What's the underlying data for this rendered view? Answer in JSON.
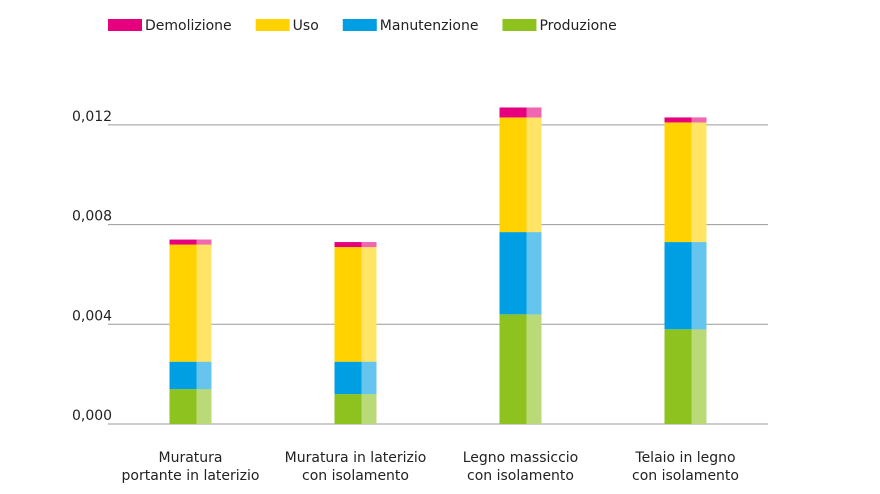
{
  "chart_data": {
    "type": "stacked_bar",
    "categories": [
      [
        "Muratura",
        "portante in laterizio"
      ],
      [
        "Muratura in laterizio",
        "con isolamento"
      ],
      [
        "Legno massiccio",
        "con isolamento"
      ],
      [
        "Telaio in legno",
        "con isolamento"
      ]
    ],
    "series": [
      {
        "name": "Produzione",
        "color": "#8dc21f",
        "values": [
          0.0014,
          0.0012,
          0.0044,
          0.0038
        ]
      },
      {
        "name": "Manutenzione",
        "color": "#009fe3",
        "values": [
          0.0011,
          0.0013,
          0.0033,
          0.0035
        ]
      },
      {
        "name": "Uso",
        "color": "#ffd200",
        "values": [
          0.0047,
          0.0046,
          0.0046,
          0.0048
        ]
      },
      {
        "name": "Demolizione",
        "color": "#e6007e",
        "values": [
          0.0002,
          0.0002,
          0.0004,
          0.0002
        ]
      }
    ],
    "ylim": [
      0,
      0.013
    ],
    "yticks": [
      {
        "value": 0,
        "label": "0,000"
      },
      {
        "value": 0.004,
        "label": "0,004"
      },
      {
        "value": 0.008,
        "label": "0,008"
      },
      {
        "value": 0.012,
        "label": "0,012"
      }
    ],
    "grid": true,
    "legend": "top"
  }
}
